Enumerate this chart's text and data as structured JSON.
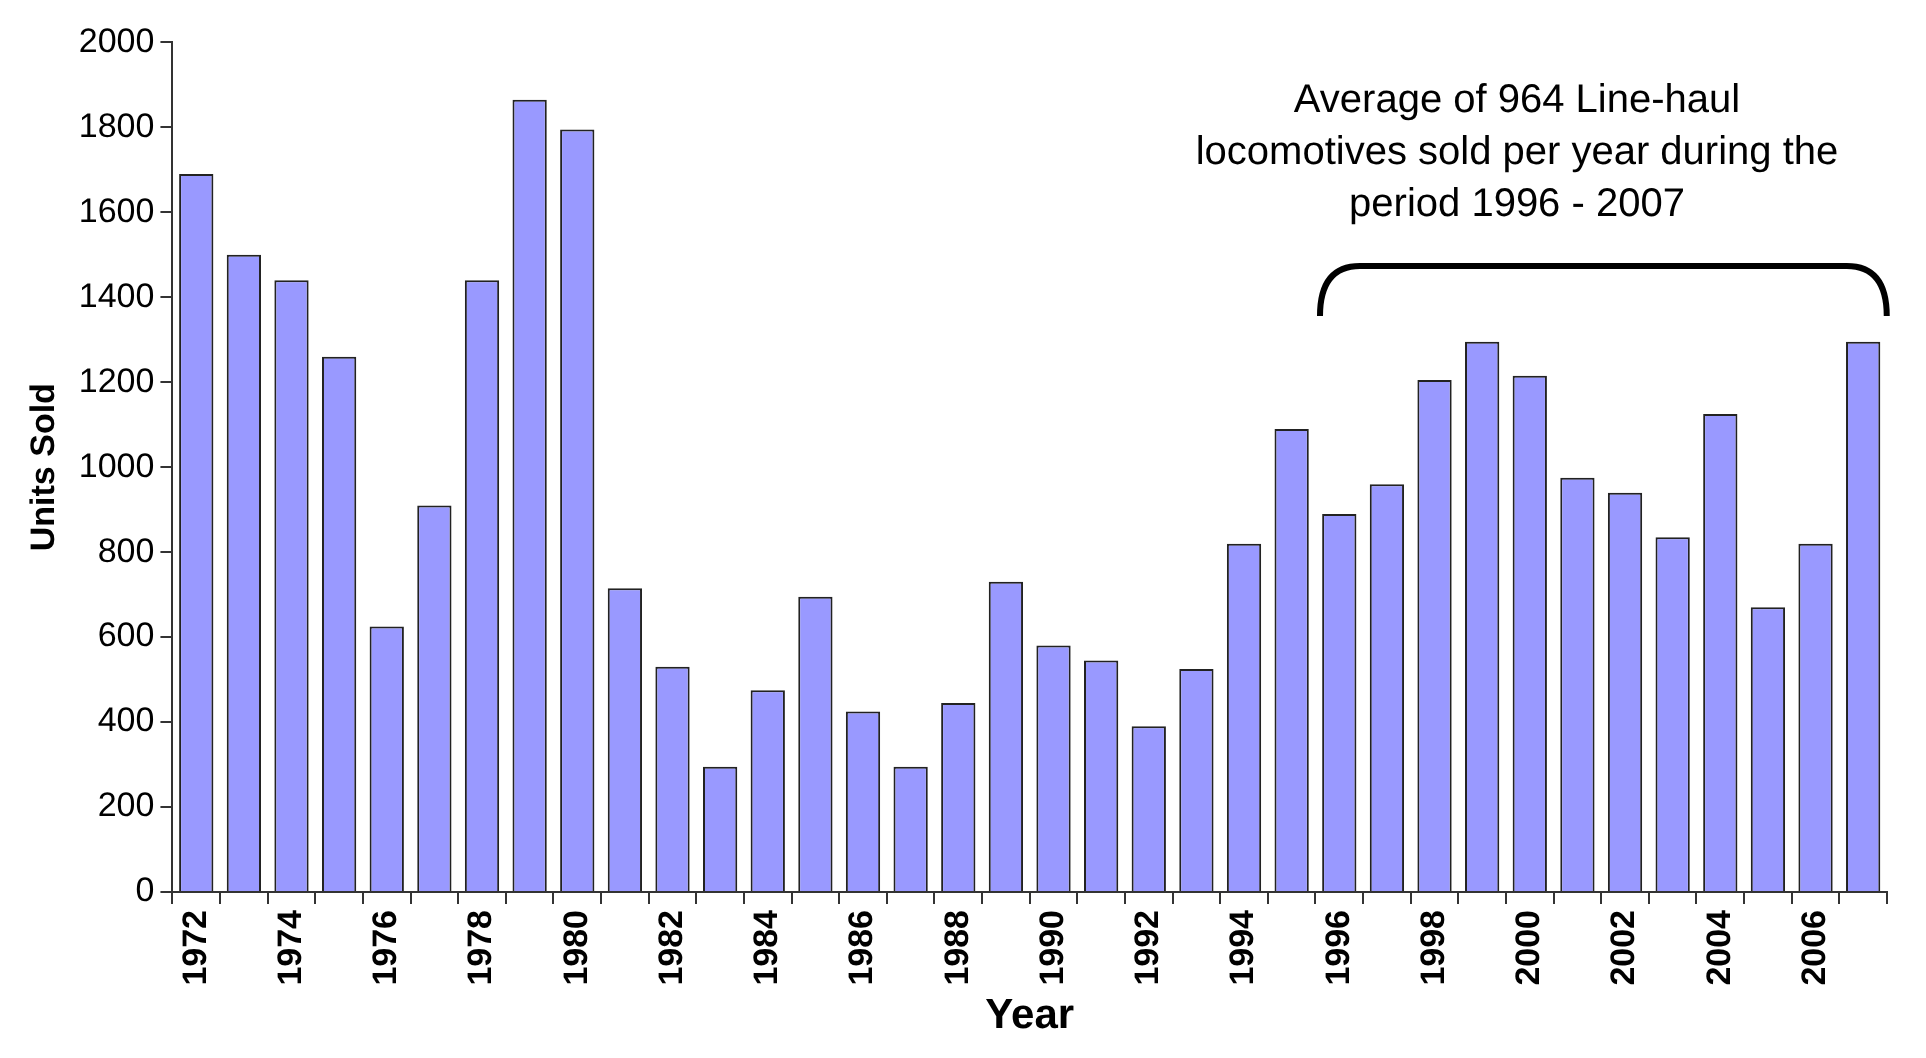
{
  "chart_data": {
    "type": "bar",
    "xlabel": "Year",
    "ylabel": "Units Sold",
    "categories": [
      "1972",
      null,
      "1974",
      null,
      "1976",
      null,
      "1978",
      null,
      "1980",
      null,
      "1982",
      null,
      "1984",
      null,
      "1986",
      null,
      "1988",
      null,
      "1990",
      null,
      "1992",
      null,
      "1994",
      null,
      "1996",
      null,
      "1998",
      null,
      "2000",
      null,
      "2002",
      null,
      "2004",
      null,
      "2006",
      null
    ],
    "values": [
      1690,
      1500,
      1440,
      1260,
      625,
      910,
      1440,
      1865,
      1795,
      715,
      530,
      295,
      475,
      695,
      425,
      295,
      445,
      730,
      580,
      545,
      390,
      525,
      820,
      1090,
      890,
      960,
      1205,
      1295,
      1215,
      975,
      940,
      835,
      1125,
      670,
      820,
      1295
    ],
    "color": "#9999ff",
    "ylim": [
      0,
      2000
    ],
    "yticks": [
      0,
      200,
      400,
      600,
      800,
      1000,
      1200,
      1400,
      1600,
      1800,
      2000
    ],
    "grid": false,
    "legend": false,
    "annotations": [
      "Average of 964 Line-haul locomotives sold per year during the period 1996 - 2007"
    ]
  }
}
